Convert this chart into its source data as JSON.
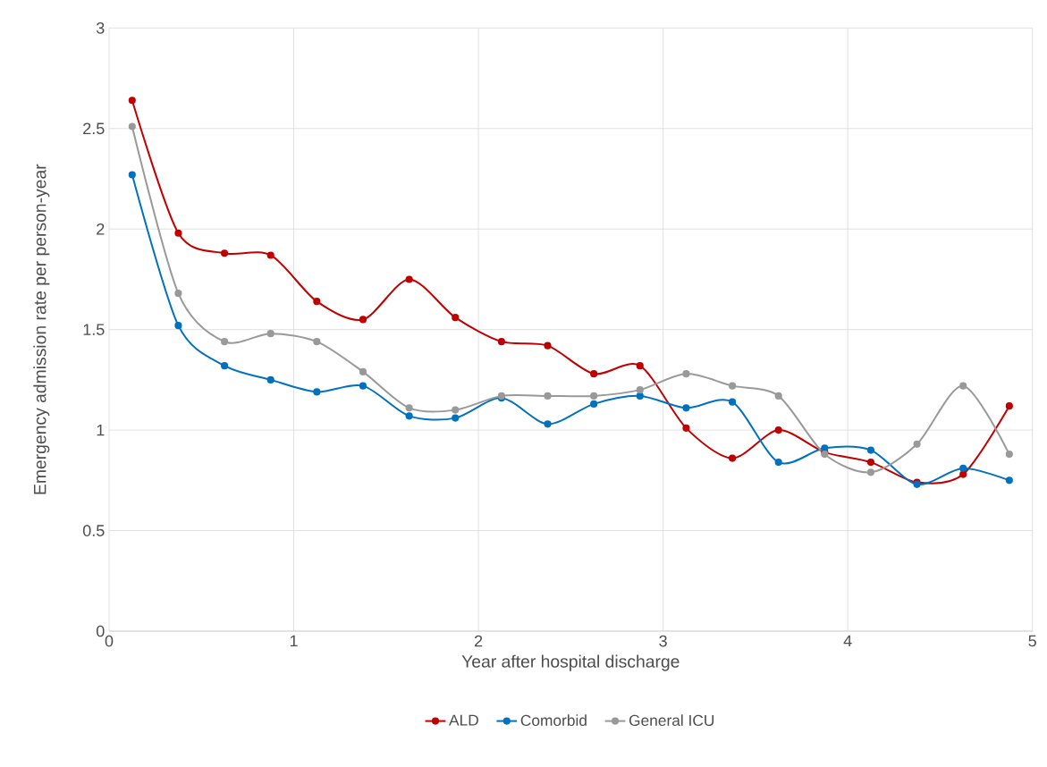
{
  "chart_data": {
    "type": "line",
    "xlabel": "Year after hospital discharge",
    "ylabel": "Emergency admission rate per person-year",
    "x": [
      0.125,
      0.375,
      0.625,
      0.875,
      1.125,
      1.375,
      1.625,
      1.875,
      2.125,
      2.375,
      2.625,
      2.875,
      3.125,
      3.375,
      3.625,
      3.875,
      4.125,
      4.375,
      4.625,
      4.875
    ],
    "series": [
      {
        "name": "ALD",
        "color": "#c00000",
        "values": [
          2.64,
          1.98,
          1.88,
          1.87,
          1.64,
          1.55,
          1.75,
          1.56,
          1.44,
          1.42,
          1.28,
          1.32,
          1.01,
          0.86,
          1.0,
          0.89,
          0.84,
          0.74,
          0.78,
          1.12
        ]
      },
      {
        "name": "Comorbid",
        "color": "#0070c0",
        "values": [
          2.27,
          1.52,
          1.32,
          1.25,
          1.19,
          1.22,
          1.07,
          1.06,
          1.16,
          1.03,
          1.13,
          1.17,
          1.11,
          1.14,
          0.84,
          0.91,
          0.9,
          0.73,
          0.81,
          0.75
        ]
      },
      {
        "name": "General ICU",
        "color": "#999999",
        "values": [
          2.51,
          1.68,
          1.44,
          1.48,
          1.44,
          1.29,
          1.11,
          1.1,
          1.17,
          1.17,
          1.17,
          1.2,
          1.28,
          1.22,
          1.17,
          0.88,
          0.79,
          0.93,
          1.22,
          0.88
        ]
      }
    ],
    "xlim": [
      0,
      5
    ],
    "xticks": [
      0,
      1,
      2,
      3,
      4,
      5
    ],
    "ylim": [
      0,
      3
    ],
    "yticks": [
      0,
      0.5,
      1,
      1.5,
      2,
      2.5,
      3
    ],
    "grid": true,
    "legend": "bottom",
    "marker": "circle",
    "line_style": "solid"
  }
}
